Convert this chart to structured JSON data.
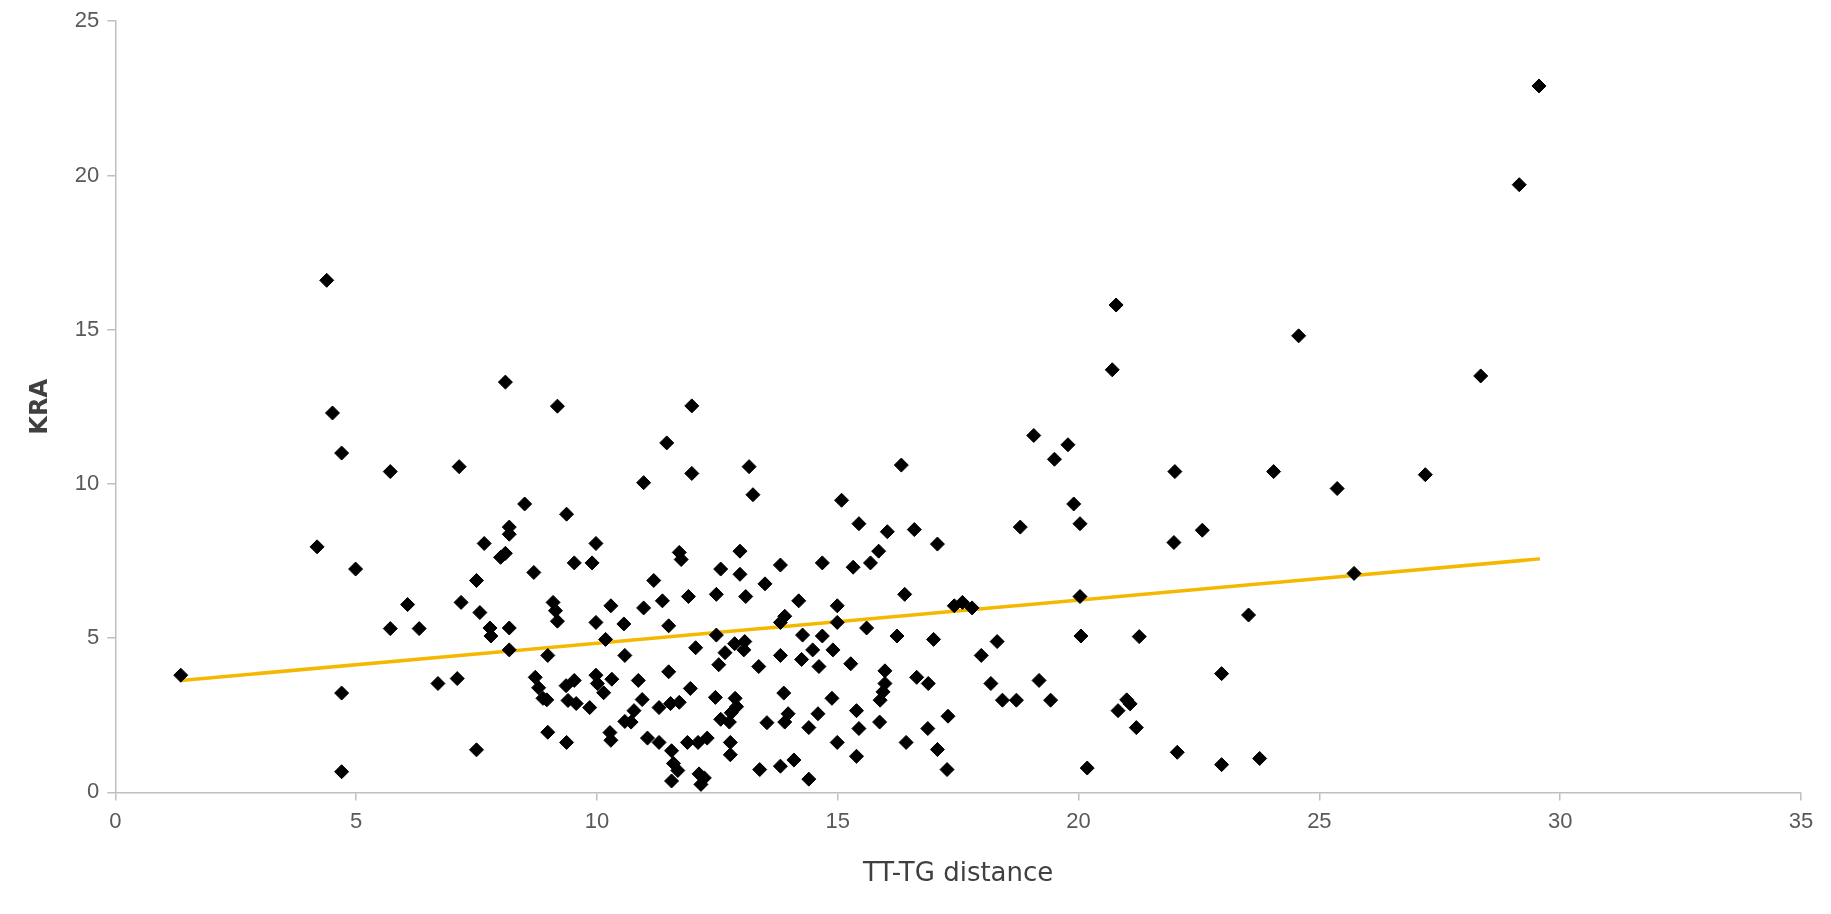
{
  "chart_data": {
    "type": "scatter",
    "xlabel": "TT-TG distance",
    "ylabel": "KRA",
    "xlim": [
      0,
      35
    ],
    "ylim": [
      0,
      25
    ],
    "xticks": [
      0,
      5,
      10,
      15,
      20,
      25,
      30,
      35
    ],
    "yticks": [
      0,
      5,
      10,
      15,
      20,
      25
    ],
    "grid": false,
    "legend": false,
    "series": [
      {
        "marker": "diamond",
        "color": "#000000",
        "x": [
          1.36,
          4.39,
          4.51,
          4.7,
          4.19,
          4.99,
          4.7,
          4.7,
          5.71,
          5.71,
          6.07,
          6.31,
          6.7,
          7.1,
          7.14,
          7.18,
          7.57,
          7.5,
          7.5,
          7.66,
          7.78,
          7.8,
          8.1,
          8.0,
          8.1,
          8.18,
          8.18,
          8.18,
          8.18,
          8.5,
          8.69,
          9.09,
          9.14,
          9.18,
          9.18,
          9.37,
          8.98,
          8.72,
          8.79,
          8.88,
          8.96,
          8.98,
          9.37,
          9.36,
          9.53,
          9.4,
          9.57,
          9.85,
          9.53,
          9.9,
          9.98,
          9.98,
          10.18,
          10.29,
          9.98,
          10.01,
          10.14,
          10.31,
          10.27,
          10.29,
          11.97,
          11.45,
          11.97,
          10.97,
          13.16,
          13.24,
          15.08,
          15.44,
          16.32,
          16.03,
          16.59,
          17.07,
          19.07,
          19.5,
          19.78,
          19.9,
          20.03,
          18.79,
          20.03,
          20.05,
          20.18,
          11.71,
          11.75,
          11.18,
          12.97,
          12.57,
          12.97,
          13.81,
          14.68,
          15.32,
          15.68,
          15.85,
          13.49,
          10.97,
          11.36,
          11.9,
          12.48,
          13.09,
          14.19,
          14.99,
          16.39,
          17.42,
          17.59,
          17.79,
          10.56,
          11.49,
          13.81,
          13.9,
          14.99,
          15.6,
          12.48,
          12.05,
          12.86,
          13.07,
          13.05,
          12.66,
          14.27,
          14.68,
          14.48,
          14.9,
          16.23,
          16.99,
          17.98,
          18.31,
          10.58,
          12.53,
          13.36,
          13.81,
          14.25,
          14.61,
          15.27,
          11.49,
          10.86,
          11.94,
          15.98,
          15.98,
          15.94,
          15.88,
          16.64,
          16.88,
          18.18,
          19.18,
          10.94,
          11.29,
          11.53,
          11.71,
          12.46,
          12.87,
          12.9,
          12.79,
          12.57,
          12.75,
          13.88,
          14.88,
          18.42,
          18.71,
          19.42,
          10.77,
          10.58,
          10.71,
          15.39,
          13.97,
          13.9,
          14.59,
          13.53,
          14.4,
          15.44,
          15.87,
          16.87,
          17.29,
          11.05,
          11.29,
          11.88,
          12.1,
          12.29,
          12.77,
          12.77,
          11.55,
          11.59,
          11.68,
          11.55,
          12.12,
          12.23,
          12.16,
          13.38,
          13.81,
          14.09,
          14.4,
          14.99,
          15.39,
          16.42,
          17.07,
          17.27,
          29.56,
          29.15,
          20.78,
          20.7,
          24.57,
          28.35,
          22.0,
          24.05,
          25.37,
          27.2,
          21.98,
          22.57,
          25.72,
          23.53,
          21.26,
          22.97,
          21.0,
          21.07,
          20.82,
          21.2,
          22.05,
          22.97,
          23.76
        ],
        "values": [
          3.8,
          16.6,
          12.3,
          11.0,
          7.96,
          7.24,
          3.22,
          0.67,
          10.4,
          5.31,
          6.09,
          5.31,
          3.53,
          3.69,
          10.56,
          6.16,
          5.83,
          6.87,
          1.38,
          8.07,
          5.33,
          5.07,
          13.3,
          7.62,
          7.75,
          8.6,
          8.37,
          5.33,
          4.62,
          9.35,
          7.13,
          6.16,
          5.89,
          5.55,
          12.52,
          9.02,
          4.44,
          3.73,
          3.39,
          3.05,
          3.0,
          1.95,
          1.62,
          3.46,
          3.63,
          2.98,
          2.88,
          2.75,
          7.44,
          7.44,
          8.07,
          5.51,
          4.96,
          6.05,
          3.8,
          3.53,
          3.23,
          3.67,
          1.94,
          1.69,
          12.53,
          11.33,
          10.34,
          10.04,
          10.56,
          9.65,
          9.47,
          8.71,
          10.61,
          8.45,
          8.52,
          8.05,
          11.57,
          10.8,
          11.27,
          9.35,
          8.71,
          8.6,
          6.35,
          5.07,
          0.79,
          7.78,
          7.55,
          6.87,
          7.82,
          7.24,
          7.07,
          7.37,
          7.44,
          7.3,
          7.44,
          7.82,
          6.76,
          5.98,
          6.21,
          6.35,
          6.42,
          6.35,
          6.21,
          6.05,
          6.42,
          6.05,
          6.16,
          5.98,
          5.46,
          5.4,
          5.51,
          5.71,
          5.51,
          5.33,
          5.1,
          4.69,
          4.82,
          4.89,
          4.62,
          4.53,
          5.1,
          5.07,
          4.62,
          4.62,
          5.07,
          4.96,
          4.44,
          4.89,
          4.44,
          4.14,
          4.08,
          4.44,
          4.31,
          4.08,
          4.17,
          3.91,
          3.63,
          3.37,
          3.94,
          3.53,
          3.26,
          2.99,
          3.73,
          3.53,
          3.53,
          3.63,
          3.01,
          2.75,
          2.88,
          2.92,
          3.08,
          3.05,
          2.78,
          2.58,
          2.37,
          2.28,
          3.22,
          3.05,
          2.99,
          2.99,
          2.99,
          2.65,
          2.3,
          2.28,
          2.65,
          2.55,
          2.28,
          2.55,
          2.26,
          2.1,
          2.07,
          2.28,
          2.07,
          2.47,
          1.76,
          1.62,
          1.62,
          1.62,
          1.76,
          1.62,
          1.22,
          1.35,
          0.94,
          0.71,
          0.37,
          0.6,
          0.47,
          0.26,
          0.74,
          0.85,
          1.05,
          0.43,
          1.62,
          1.17,
          1.62,
          1.39,
          0.74,
          22.9,
          19.7,
          15.8,
          13.7,
          14.8,
          13.5,
          10.4,
          10.4,
          9.85,
          10.3,
          8.1,
          8.5,
          7.1,
          5.75,
          5.05,
          3.85,
          3.0,
          2.87,
          2.65,
          2.1,
          1.3,
          0.9,
          1.1
        ]
      },
      {
        "type": "line",
        "color": "#f5b800",
        "x": [
          1.36,
          29.58
        ],
        "values": [
          3.63,
          7.57
        ]
      }
    ]
  }
}
